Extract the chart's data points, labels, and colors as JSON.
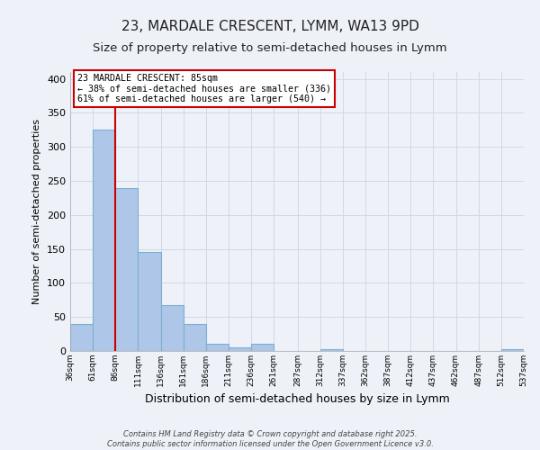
{
  "title1": "23, MARDALE CRESCENT, LYMM, WA13 9PD",
  "title2": "Size of property relative to semi-detached houses in Lymm",
  "xlabel": "Distribution of semi-detached houses by size in Lymm",
  "ylabel": "Number of semi-detached properties",
  "bin_edges": [
    36,
    61,
    86,
    111,
    136,
    161,
    186,
    211,
    236,
    261,
    287,
    312,
    337,
    362,
    387,
    412,
    437,
    462,
    487,
    512,
    537
  ],
  "bar_heights": [
    40,
    325,
    240,
    145,
    67,
    40,
    10,
    5,
    10,
    0,
    0,
    2,
    0,
    0,
    0,
    0,
    0,
    0,
    0,
    2
  ],
  "bar_color": "#aec6e8",
  "bar_edge_color": "#7aafd4",
  "vline_x": 86,
  "vline_color": "#cc0000",
  "annotation_title": "23 MARDALE CRESCENT: 85sqm",
  "annotation_line2": "← 38% of semi-detached houses are smaller (336)",
  "annotation_line3": "61% of semi-detached houses are larger (540) →",
  "annotation_box_color": "#cc0000",
  "ylim": [
    0,
    410
  ],
  "yticks": [
    0,
    50,
    100,
    150,
    200,
    250,
    300,
    350,
    400
  ],
  "footnote1": "Contains HM Land Registry data © Crown copyright and database right 2025.",
  "footnote2": "Contains public sector information licensed under the Open Government Licence v3.0.",
  "bg_color": "#eef2f8",
  "grid_color": "#d0d8e8",
  "title_fontsize": 11,
  "subtitle_fontsize": 9.5
}
